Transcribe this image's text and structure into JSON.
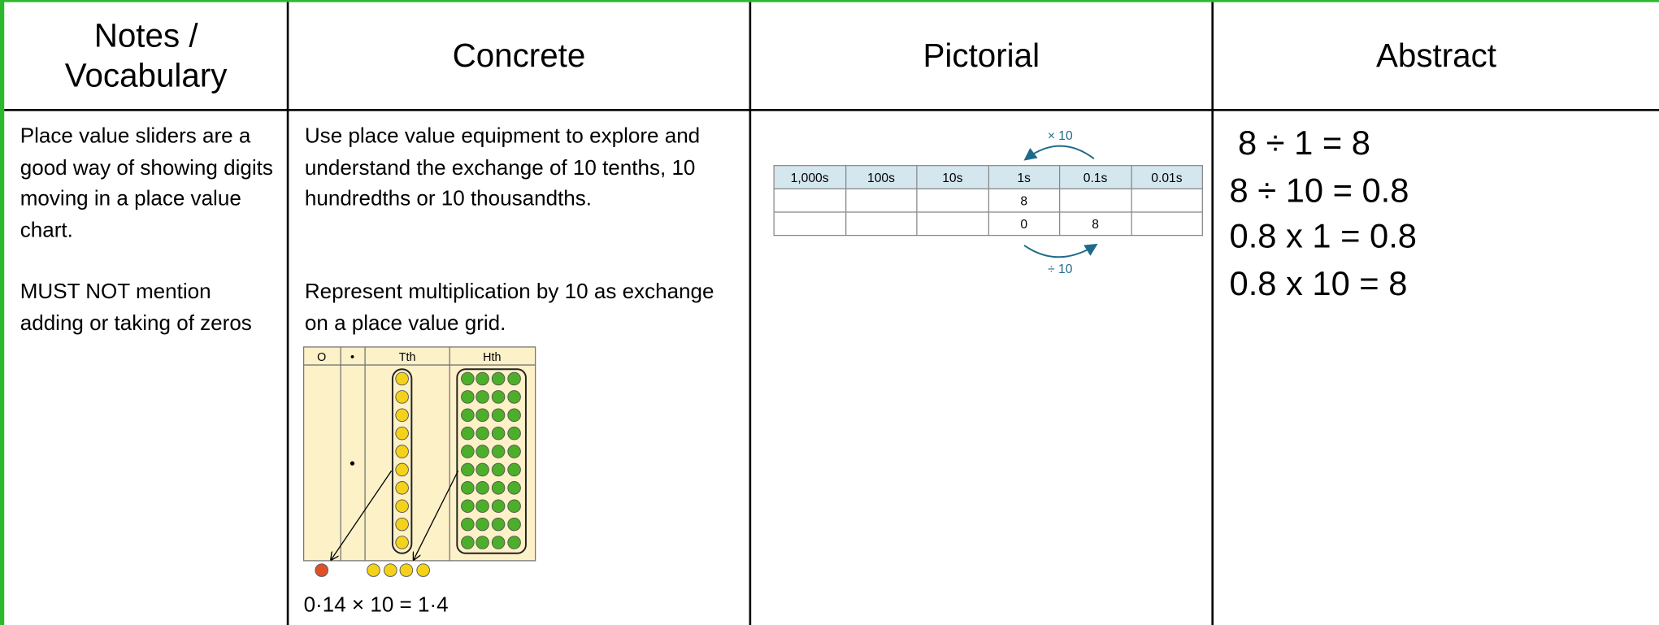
{
  "headers": [
    "Notes / Vocabulary",
    "Concrete",
    "Pictorial",
    "Abstract"
  ],
  "notes": [
    "Place value sliders are a good way of showing digits moving in a place value chart.",
    "MUST NOT mention adding or taking of zeros"
  ],
  "concrete": {
    "paragraphs": [
      "Use place value equipment to explore and understand the exchange of 10 tenths, 10 hundredths or 10 thousandths.",
      "Represent multiplication by 10 as exchange on a place value grid."
    ],
    "grid_headers": [
      "O",
      "•",
      "Tth",
      "Hth"
    ],
    "equation": "0·14 × 10 = 1·4"
  },
  "pictorial": {
    "multiply_label": "× 10",
    "divide_label": "÷ 10",
    "columns": [
      "1,000s",
      "100s",
      "10s",
      "1s",
      "0.1s",
      "0.01s"
    ],
    "rows": [
      [
        null,
        null,
        null,
        "8",
        null,
        null
      ],
      [
        null,
        null,
        null,
        "0",
        "8",
        null
      ]
    ]
  },
  "abstract": [
    "8 ÷ 1 = 8",
    "8 ÷ 10 = 0.8",
    "0.8 x 1 = 0.8",
    "0.8 x 10 = 8"
  ]
}
